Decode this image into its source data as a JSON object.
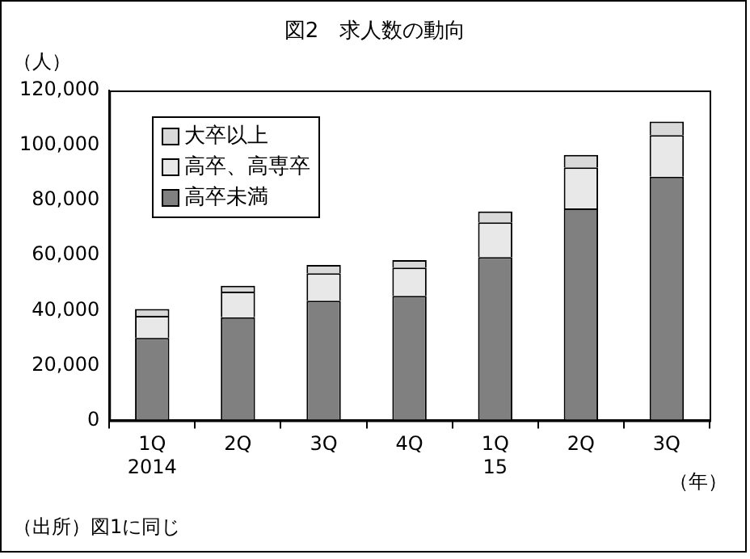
{
  "chart_data": {
    "type": "bar",
    "title": "図2　求人数の動向",
    "ylabel": "（人）",
    "xlabel": "（年）",
    "annotations": [
      "（出所）図1に同じ"
    ],
    "categories": [
      "1Q\n2014",
      "2Q",
      "3Q",
      "4Q",
      "1Q\n15",
      "2Q",
      "3Q"
    ],
    "stacked": true,
    "legend": "top left",
    "grid": false,
    "ylim": [
      0,
      120000
    ],
    "yticks": [
      0,
      {
        "value": 20000,
        "label": "20,000"
      },
      {
        "value": 40000,
        "label": "40,000"
      },
      {
        "value": 60000,
        "label": "60,000"
      },
      {
        "value": 80000,
        "label": "80,000"
      },
      {
        "value": 100000,
        "label": "100,000"
      },
      {
        "value": 120000,
        "label": "120,000"
      }
    ],
    "series": [
      {
        "name": "高卒未満",
        "color": "#808080",
        "values": [
          30000,
          37500,
          43500,
          45300,
          59400,
          77100,
          88600
        ]
      },
      {
        "name": "高卒、高専卒",
        "color": "#e8e8e8",
        "values": [
          8000,
          9300,
          10000,
          10300,
          12600,
          14900,
          15200
        ]
      },
      {
        "name": "大卒以上",
        "color": "#d9d9d9",
        "values": [
          2500,
          2200,
          3000,
          2700,
          4000,
          4600,
          4900
        ]
      }
    ]
  }
}
